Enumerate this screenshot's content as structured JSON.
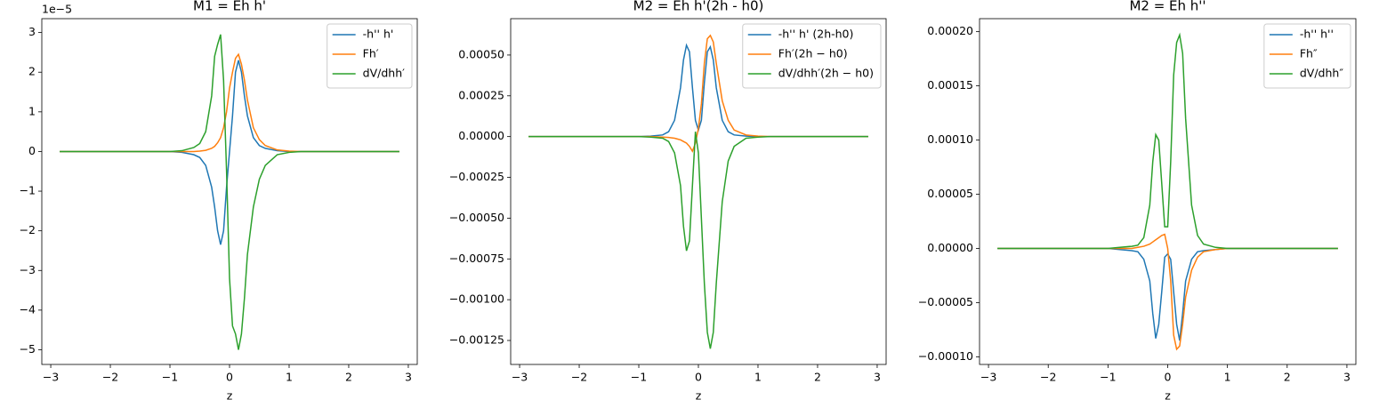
{
  "chart_data": [
    {
      "type": "line",
      "title": "M1 = Eh h'",
      "xlabel": "z",
      "y_offset_label": "1e−5",
      "legend": "upper right",
      "x": [
        -2.85,
        -2,
        -1.5,
        -1.2,
        -1,
        -0.8,
        -0.6,
        -0.5,
        -0.4,
        -0.3,
        -0.25,
        -0.2,
        -0.15,
        -0.1,
        -0.05,
        0,
        0.05,
        0.1,
        0.15,
        0.2,
        0.25,
        0.3,
        0.4,
        0.5,
        0.6,
        0.8,
        1,
        1.2,
        1.5,
        2,
        2.85
      ],
      "xlim": [
        -3.15,
        3.15
      ],
      "xticks": [
        {
          "value": -3,
          "label": "−3"
        },
        {
          "value": -2,
          "label": "−2"
        },
        {
          "value": -1,
          "label": "−1"
        },
        0,
        1,
        2,
        3
      ],
      "ylim": [
        -5.37,
        3.35
      ],
      "yticks": [
        {
          "value": -5,
          "label": "−5"
        },
        {
          "value": -4,
          "label": "−4"
        },
        {
          "value": -3,
          "label": "−3"
        },
        {
          "value": -2,
          "label": "−2"
        },
        {
          "value": -1,
          "label": "−1"
        },
        0,
        1,
        2,
        3
      ],
      "series": [
        {
          "name": "-h'' h'",
          "color": "#1f77b4",
          "values": [
            0,
            0,
            0,
            0,
            0,
            -0.02,
            -0.08,
            -0.15,
            -0.35,
            -0.9,
            -1.4,
            -2.0,
            -2.35,
            -2.0,
            -0.9,
            0,
            0.9,
            2.0,
            2.3,
            2.0,
            1.4,
            0.9,
            0.35,
            0.15,
            0.08,
            0.02,
            0,
            0,
            0,
            0,
            0
          ]
        },
        {
          "name": "Fh′",
          "color": "#ff7f0e",
          "values": [
            0,
            0,
            0,
            0,
            0,
            0,
            0,
            0.01,
            0.03,
            0.08,
            0.13,
            0.22,
            0.35,
            0.6,
            1.0,
            1.6,
            2.0,
            2.35,
            2.45,
            2.2,
            1.8,
            1.3,
            0.6,
            0.3,
            0.15,
            0.04,
            0.01,
            0,
            0,
            0,
            0
          ]
        },
        {
          "name": "dV/dhh′",
          "color": "#2ca02c",
          "values": [
            0,
            0,
            0,
            0,
            0,
            0.02,
            0.1,
            0.2,
            0.5,
            1.4,
            2.4,
            2.7,
            2.95,
            1.8,
            -0.5,
            -3.2,
            -4.4,
            -4.6,
            -5.0,
            -4.6,
            -3.7,
            -2.6,
            -1.4,
            -0.7,
            -0.35,
            -0.08,
            -0.02,
            0,
            0,
            0,
            0
          ]
        }
      ]
    },
    {
      "type": "line",
      "title": "M2 = Eh h'(2h - h0)",
      "xlabel": "z",
      "legend": "upper right",
      "x": [
        -2.85,
        -2,
        -1.5,
        -1.2,
        -1,
        -0.8,
        -0.6,
        -0.5,
        -0.4,
        -0.3,
        -0.25,
        -0.2,
        -0.15,
        -0.1,
        -0.05,
        0,
        0.05,
        0.1,
        0.15,
        0.2,
        0.25,
        0.3,
        0.4,
        0.5,
        0.6,
        0.8,
        1,
        1.2,
        1.5,
        2,
        2.85
      ],
      "xlim": [
        -3.15,
        3.15
      ],
      "xticks": [
        {
          "value": -3,
          "label": "−3"
        },
        {
          "value": -2,
          "label": "−2"
        },
        {
          "value": -1,
          "label": "−1"
        },
        0,
        1,
        2,
        3
      ],
      "ylim": [
        -0.001397,
        0.000723
      ],
      "yticks": [
        {
          "value": -0.00125,
          "label": "−0.00125"
        },
        {
          "value": -0.001,
          "label": "−0.00100"
        },
        {
          "value": -0.00075,
          "label": "−0.00075"
        },
        {
          "value": -0.0005,
          "label": "−0.00050"
        },
        {
          "value": -0.00025,
          "label": "−0.00025"
        },
        {
          "value": 0,
          "label": "0.00000"
        },
        {
          "value": 0.00025,
          "label": "0.00025"
        },
        {
          "value": 0.0005,
          "label": "0.00050"
        }
      ],
      "series": [
        {
          "name": "-h'' h' (2h-h0)",
          "color": "#1f77b4",
          "values": [
            0,
            0,
            0,
            0,
            0,
            3e-06,
            1e-05,
            3e-05,
            0.0001,
            0.0003,
            0.00047,
            0.00056,
            0.00052,
            0.0003,
            0.0001,
            4e-05,
            0.0001,
            0.00033,
            0.00052,
            0.00055,
            0.00047,
            0.0003,
            0.0001,
            3e-05,
            1e-05,
            3e-06,
            0,
            0,
            0,
            0,
            0
          ]
        },
        {
          "name": "Fh′(2h − h0)",
          "color": "#ff7f0e",
          "values": [
            0,
            0,
            0,
            0,
            0,
            0,
            -3e-06,
            -5e-06,
            -1e-05,
            -2e-05,
            -3e-05,
            -4e-05,
            -6e-05,
            -9e-05,
            -4e-05,
            5e-05,
            0.0002,
            0.00045,
            0.0006,
            0.00062,
            0.00058,
            0.00045,
            0.00022,
            0.0001,
            4e-05,
            1e-05,
            3e-06,
            0,
            0,
            0,
            0
          ]
        },
        {
          "name": "dV/dhh′(2h − h0)",
          "color": "#2ca02c",
          "values": [
            0,
            0,
            0,
            0,
            0,
            -3e-06,
            -1e-05,
            -3e-05,
            -0.0001,
            -0.0003,
            -0.00055,
            -0.0007,
            -0.00064,
            -0.0003,
            3e-05,
            -0.0001,
            -0.0005,
            -0.0009,
            -0.0012,
            -0.0013,
            -0.0012,
            -0.0009,
            -0.0004,
            -0.00015,
            -6e-05,
            -1e-05,
            -3e-06,
            0,
            0,
            0,
            0
          ]
        }
      ]
    },
    {
      "type": "line",
      "title": "M2 = Eh h''",
      "xlabel": "z",
      "legend": "upper right",
      "x": [
        -2.85,
        -2,
        -1.5,
        -1.2,
        -1,
        -0.8,
        -0.6,
        -0.5,
        -0.4,
        -0.3,
        -0.25,
        -0.2,
        -0.15,
        -0.1,
        -0.05,
        0,
        0.05,
        0.1,
        0.15,
        0.2,
        0.25,
        0.3,
        0.4,
        0.5,
        0.6,
        0.8,
        1,
        1.2,
        1.5,
        2,
        2.85
      ],
      "xlim": [
        -3.15,
        3.15
      ],
      "xticks": [
        {
          "value": -3,
          "label": "−3"
        },
        {
          "value": -2,
          "label": "−2"
        },
        {
          "value": -1,
          "label": "−1"
        },
        0,
        1,
        2,
        3
      ],
      "ylim": [
        -0.000107,
        0.000212
      ],
      "yticks": [
        {
          "value": -0.0001,
          "label": "−0.00010"
        },
        {
          "value": -5e-05,
          "label": "−0.00005"
        },
        {
          "value": 0,
          "label": "0.00000"
        },
        {
          "value": 5e-05,
          "label": "0.00005"
        },
        {
          "value": 0.0001,
          "label": "0.00010"
        },
        {
          "value": 0.00015,
          "label": "0.00015"
        },
        {
          "value": 0.0002,
          "label": "0.00020"
        }
      ],
      "series": [
        {
          "name": "-h'' h''",
          "color": "#1f77b4",
          "values": [
            0,
            0,
            0,
            0,
            0,
            -1e-06,
            -2e-06,
            -3e-06,
            -1e-05,
            -3e-05,
            -6e-05,
            -8.3e-05,
            -7e-05,
            -4e-05,
            -8e-06,
            -5e-06,
            -1e-05,
            -4e-05,
            -7e-05,
            -8.5e-05,
            -6e-05,
            -3e-05,
            -1e-05,
            -3e-06,
            -2e-06,
            -1e-06,
            0,
            0,
            0,
            0,
            0
          ]
        },
        {
          "name": "Fh″",
          "color": "#ff7f0e",
          "values": [
            0,
            0,
            0,
            0,
            0,
            0,
            0,
            1e-06,
            2e-06,
            4e-06,
            6e-06,
            8e-06,
            1e-05,
            1.2e-05,
            1.3e-05,
            0,
            -3e-05,
            -8e-05,
            -9.3e-05,
            -9e-05,
            -7e-05,
            -4.5e-05,
            -2e-05,
            -8e-06,
            -3e-06,
            -1e-06,
            0,
            0,
            0,
            0,
            0
          ]
        },
        {
          "name": "dV/dhh″",
          "color": "#2ca02c",
          "values": [
            0,
            0,
            0,
            0,
            0,
            1e-06,
            2e-06,
            3e-06,
            1e-05,
            4e-05,
            8e-05,
            0.000105,
            0.0001,
            6e-05,
            2e-05,
            2e-05,
            8e-05,
            0.00016,
            0.00019,
            0.000197,
            0.00018,
            0.00012,
            4e-05,
            1.2e-05,
            4e-06,
            1e-06,
            0,
            0,
            0,
            0,
            0
          ]
        }
      ]
    }
  ]
}
